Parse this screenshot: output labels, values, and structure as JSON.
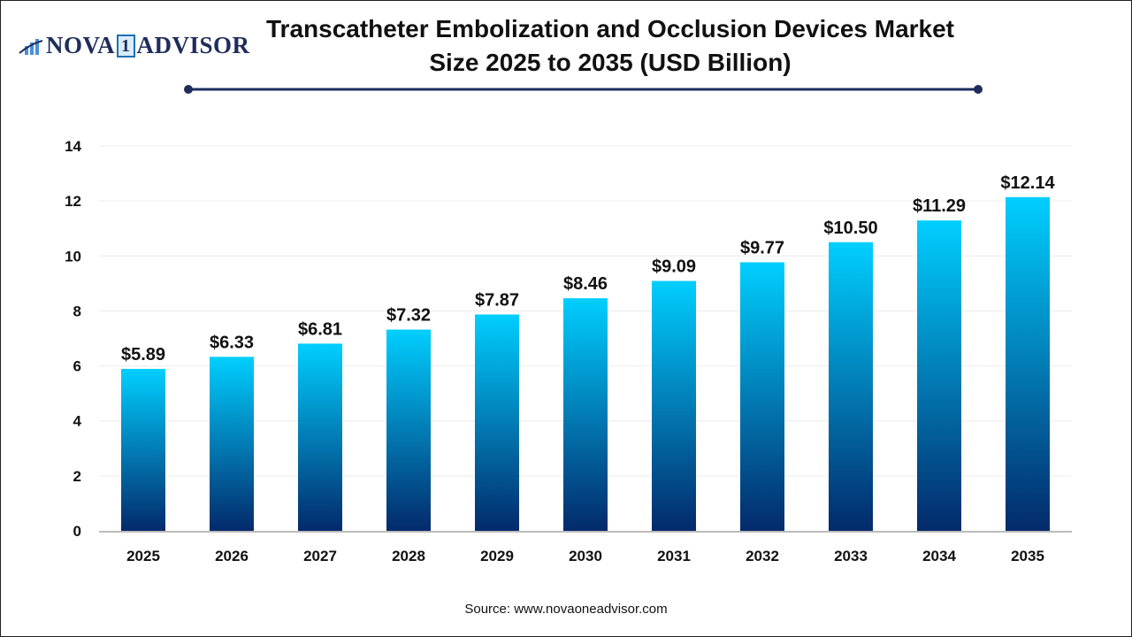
{
  "logo": {
    "text_left": "NOVA",
    "text_mid": "1",
    "text_right": "ADVISOR"
  },
  "title": "Transcatheter Embolization and Occlusion Devices Market Size 2025 to 2035 (USD Billion)",
  "source": "Source: www.novaoneadvisor.com",
  "colors": {
    "bar_top": "#00cfff",
    "bar_bottom": "#032a6b",
    "accent_line": "#1f2d5c"
  },
  "chart_data": {
    "type": "bar",
    "title": "Transcatheter Embolization and Occlusion Devices Market Size 2025 to 2035 (USD Billion)",
    "xlabel": "",
    "ylabel": "",
    "categories": [
      "2025",
      "2026",
      "2027",
      "2028",
      "2029",
      "2030",
      "2031",
      "2032",
      "2033",
      "2034",
      "2035"
    ],
    "values": [
      5.89,
      6.33,
      6.81,
      7.32,
      7.87,
      8.46,
      9.09,
      9.77,
      10.5,
      11.29,
      12.14
    ],
    "data_labels": [
      "$5.89",
      "$6.33",
      "$6.81",
      "$7.32",
      "$7.87",
      "$8.46",
      "$9.09",
      "$9.77",
      "$10.50",
      "$11.29",
      "$12.14"
    ],
    "ylim": [
      0,
      14
    ],
    "yticks": [
      0,
      2,
      4,
      6,
      8,
      10,
      12,
      14
    ],
    "grid": true,
    "legend": "none"
  }
}
